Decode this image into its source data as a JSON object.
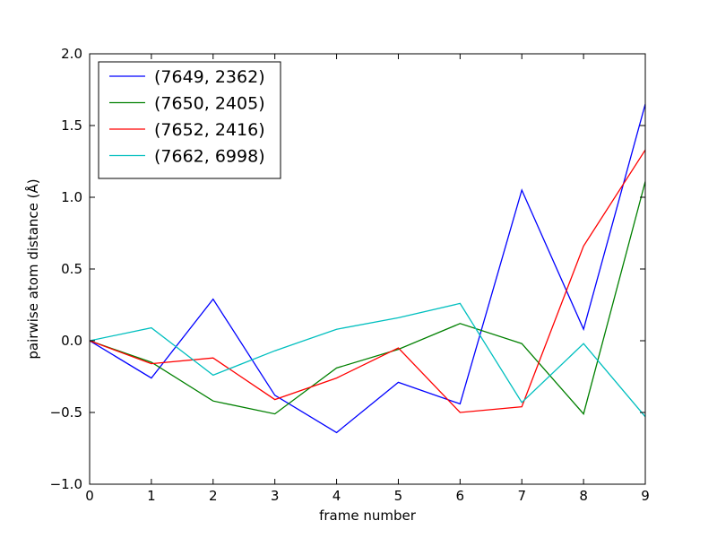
{
  "chart_data": {
    "type": "line",
    "title": "",
    "xlabel": "frame number",
    "ylabel": "pairwise atom distance (Å)",
    "xlim": [
      0,
      9
    ],
    "ylim": [
      -1.0,
      2.0
    ],
    "x": [
      0,
      1,
      2,
      3,
      4,
      5,
      6,
      7,
      8,
      9
    ],
    "x_ticks": [
      "0",
      "1",
      "2",
      "3",
      "4",
      "5",
      "6",
      "7",
      "8",
      "9"
    ],
    "y_ticks": [
      {
        "value": -1.0,
        "label": "−1.0"
      },
      {
        "value": -0.5,
        "label": "−0.5"
      },
      {
        "value": 0.0,
        "label": "0.0"
      },
      {
        "value": 0.5,
        "label": "0.5"
      },
      {
        "value": 1.0,
        "label": "1.0"
      },
      {
        "value": 1.5,
        "label": "1.5"
      },
      {
        "value": 2.0,
        "label": "2.0"
      }
    ],
    "grid": false,
    "legend_position": "top-left",
    "series": [
      {
        "name": "(7649, 2362)",
        "color": "#0000ff",
        "values": [
          0.0,
          -0.26,
          0.29,
          -0.38,
          -0.64,
          -0.29,
          -0.44,
          1.05,
          0.08,
          1.65
        ]
      },
      {
        "name": "(7650, 2405)",
        "color": "#008000",
        "values": [
          0.0,
          -0.15,
          -0.42,
          -0.51,
          -0.19,
          -0.06,
          0.12,
          -0.02,
          -0.51,
          1.11
        ]
      },
      {
        "name": "(7652, 2416)",
        "color": "#ff0000",
        "values": [
          0.0,
          -0.16,
          -0.12,
          -0.41,
          -0.26,
          -0.05,
          -0.5,
          -0.46,
          0.66,
          1.33
        ]
      },
      {
        "name": "(7662, 6998)",
        "color": "#00bfbf",
        "values": [
          0.0,
          0.09,
          -0.24,
          -0.07,
          0.08,
          0.16,
          0.26,
          -0.43,
          -0.02,
          -0.53
        ]
      }
    ]
  }
}
